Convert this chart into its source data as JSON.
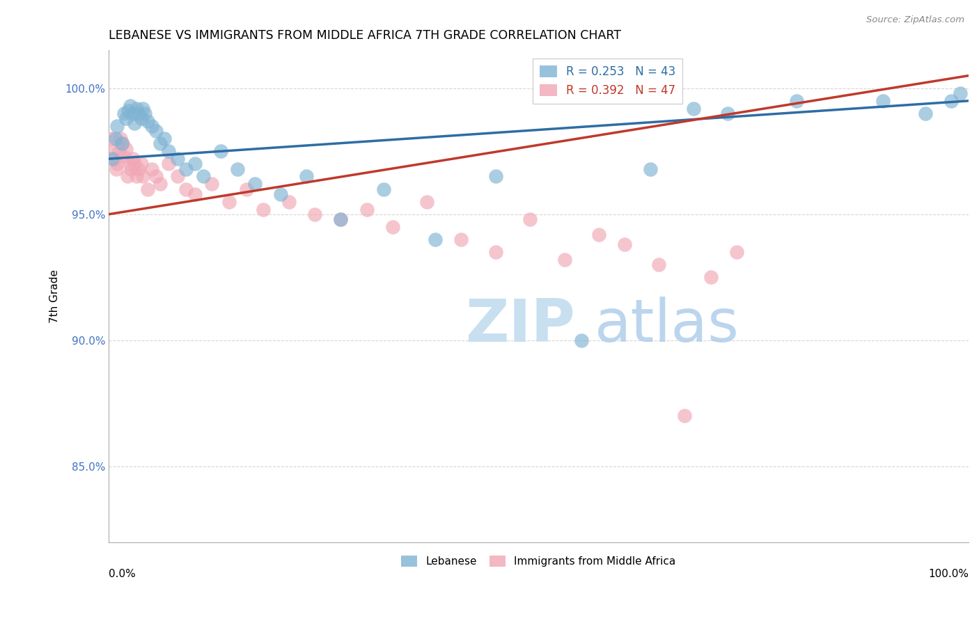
{
  "title": "LEBANESE VS IMMIGRANTS FROM MIDDLE AFRICA 7TH GRADE CORRELATION CHART",
  "source": "Source: ZipAtlas.com",
  "ylabel": "7th Grade",
  "xlim": [
    0.0,
    100.0
  ],
  "ylim": [
    82.0,
    101.5
  ],
  "yticks": [
    85.0,
    90.0,
    95.0,
    100.0
  ],
  "ytick_labels": [
    "85.0%",
    "90.0%",
    "95.0%",
    "100.0%"
  ],
  "legend_blue_label": "Lebanese",
  "legend_pink_label": "Immigrants from Middle Africa",
  "R_blue": 0.253,
  "N_blue": 43,
  "R_pink": 0.392,
  "N_pink": 47,
  "blue_color": "#7FB3D3",
  "pink_color": "#F1A7B5",
  "blue_line_color": "#2E6DA4",
  "pink_line_color": "#C0392B",
  "blue_scatter_x": [
    0.4,
    0.8,
    1.0,
    1.5,
    1.8,
    2.0,
    2.3,
    2.5,
    2.8,
    3.0,
    3.2,
    3.5,
    3.8,
    4.0,
    4.2,
    4.5,
    5.0,
    5.5,
    6.0,
    6.5,
    7.0,
    8.0,
    9.0,
    10.0,
    11.0,
    13.0,
    15.0,
    17.0,
    20.0,
    23.0,
    27.0,
    32.0,
    38.0,
    45.0,
    55.0,
    63.0,
    68.0,
    72.0,
    80.0,
    90.0,
    95.0,
    98.0,
    99.0
  ],
  "blue_scatter_y": [
    97.2,
    98.0,
    98.5,
    97.8,
    99.0,
    98.8,
    99.1,
    99.3,
    99.0,
    98.6,
    99.2,
    99.0,
    98.8,
    99.2,
    99.0,
    98.7,
    98.5,
    98.3,
    97.8,
    98.0,
    97.5,
    97.2,
    96.8,
    97.0,
    96.5,
    97.5,
    96.8,
    96.2,
    95.8,
    96.5,
    94.8,
    96.0,
    94.0,
    96.5,
    90.0,
    96.8,
    99.2,
    99.0,
    99.5,
    99.5,
    99.0,
    99.5,
    99.8
  ],
  "pink_scatter_x": [
    0.3,
    0.5,
    0.7,
    0.9,
    1.0,
    1.2,
    1.4,
    1.6,
    1.8,
    2.0,
    2.2,
    2.4,
    2.6,
    2.8,
    3.0,
    3.2,
    3.5,
    3.8,
    4.0,
    4.5,
    5.0,
    5.5,
    6.0,
    7.0,
    8.0,
    9.0,
    10.0,
    12.0,
    14.0,
    16.0,
    18.0,
    21.0,
    24.0,
    27.0,
    30.0,
    33.0,
    37.0,
    41.0,
    45.0,
    49.0,
    53.0,
    57.0,
    60.0,
    64.0,
    67.0,
    70.0,
    73.0
  ],
  "pink_scatter_y": [
    98.0,
    97.5,
    97.2,
    96.8,
    97.0,
    97.5,
    98.0,
    97.8,
    97.3,
    97.6,
    96.5,
    97.0,
    96.8,
    97.2,
    97.0,
    96.5,
    96.8,
    97.0,
    96.5,
    96.0,
    96.8,
    96.5,
    96.2,
    97.0,
    96.5,
    96.0,
    95.8,
    96.2,
    95.5,
    96.0,
    95.2,
    95.5,
    95.0,
    94.8,
    95.2,
    94.5,
    95.5,
    94.0,
    93.5,
    94.8,
    93.2,
    94.2,
    93.8,
    93.0,
    87.0,
    92.5,
    93.5
  ]
}
